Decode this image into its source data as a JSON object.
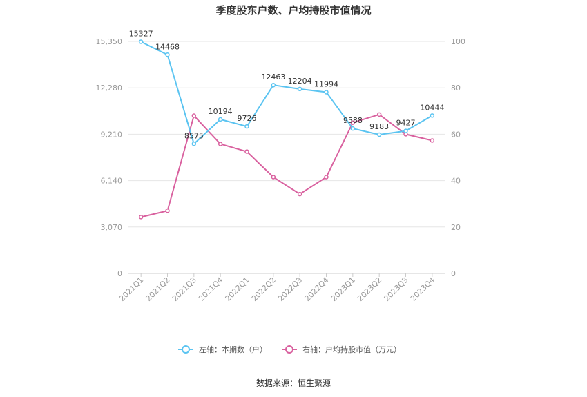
{
  "chart_data": {
    "type": "line",
    "title": "季度股东户数、户均持股市值情况",
    "categories": [
      "2021Q1",
      "2021Q2",
      "2021Q3",
      "2021Q4",
      "2022Q1",
      "2022Q2",
      "2022Q3",
      "2022Q4",
      "2023Q1",
      "2023Q2",
      "2023Q3",
      "2023Q4"
    ],
    "y_left": {
      "ticks": [
        "0",
        "3,070",
        "6,140",
        "9,210",
        "12,280",
        "15,350"
      ],
      "min": 0,
      "max": 15350
    },
    "y_right": {
      "ticks": [
        "0",
        "20",
        "40",
        "60",
        "80",
        "100"
      ],
      "min": 0,
      "max": 100
    },
    "series": [
      {
        "name": "左轴：本期数（户）",
        "axis": "left",
        "color": "#5bc4f1",
        "values": [
          15327,
          14468,
          8575,
          10194,
          9726,
          12463,
          12204,
          11994,
          9588,
          9183,
          9427,
          10444
        ],
        "labels": [
          "15327",
          "14468",
          "8575",
          "10194",
          "9726",
          "12463",
          "12204",
          "11994",
          "9588",
          "9183",
          "9427",
          "10444"
        ]
      },
      {
        "name": "右轴：户均持股市值（万元）",
        "axis": "right",
        "color": "#d9619f",
        "values": [
          24.3,
          27.0,
          68.0,
          55.8,
          52.5,
          41.5,
          34.2,
          41.5,
          65.0,
          68.5,
          60.0,
          57.3
        ]
      }
    ],
    "grid": true,
    "legend": "bottom-center"
  },
  "source": "数据来源：恒生聚源"
}
